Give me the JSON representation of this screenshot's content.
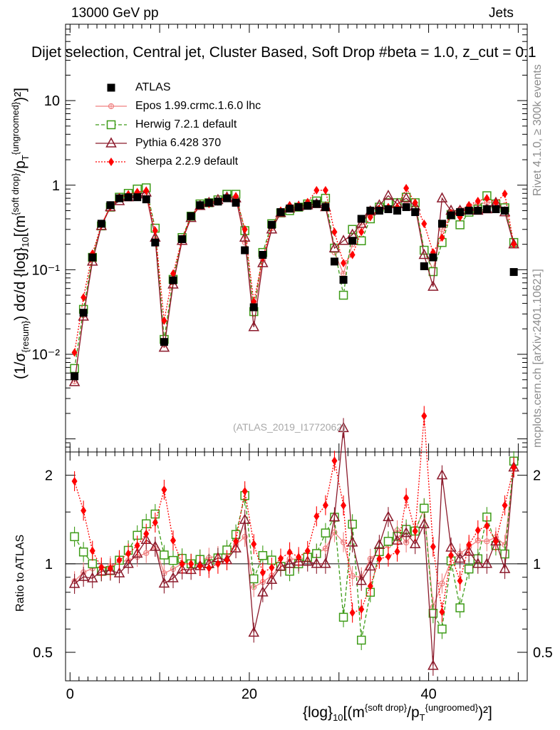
{
  "header": {
    "energy": "13000 GeV pp",
    "category": "Jets",
    "title_text": "Dijet selection, Central jet, Cluster Based, Soft Drop #beta = 1.0, z_cut = 0.1"
  },
  "side_texts": {
    "rivet": "Rivet 4.1.0, ≥ 300k events",
    "source": "mcplots.cern.ch [arXiv:2401.10621]"
  },
  "watermark": "(ATLAS_2019_I1772062)",
  "axis_labels": {
    "y_main_prefix": "(1/σ",
    "y_main_sub": "{resum}",
    "y_main_rest": ") dσ/d {log}",
    "y_main_sub2": "10",
    "y_main_tail": "[(m",
    "y_main_sup": "{soft drop}",
    "y_main_tail2": "/p",
    "y_main_sub3": "T",
    "y_main_sup2": "{ungroomed}",
    "y_main_end": ")²]",
    "y_ratio": "Ratio to ATLAS",
    "x_prefix": "{log}",
    "x_sub": "10",
    "x_mid": "[(m",
    "x_sup": "{soft drop}",
    "x_mid2": "/p",
    "x_sub2": "T",
    "x_sup2": "{ungroomed}",
    "x_end": ")²]"
  },
  "main_ticks": [
    "10⁻²",
    "10⁻¹",
    "1",
    "10"
  ],
  "ratio_ticks": [
    "0.5",
    "1",
    "2"
  ],
  "x_ticks": [
    "0",
    "20",
    "40"
  ],
  "legend": [
    {
      "label": "ATLAS",
      "color": "#000000",
      "marker": "square-filled",
      "line": "none"
    },
    {
      "label": "Epos 1.99.crmc.1.6.0 lhc",
      "color": "#f08080",
      "marker": "plus-circle",
      "line": "solid"
    },
    {
      "label": "Herwig 7.2.1 default",
      "color": "#3d9b17",
      "marker": "square-open",
      "line": "dashed"
    },
    {
      "label": "Pythia 6.428 370",
      "color": "#8b1a2b",
      "marker": "triangle-open",
      "line": "solid"
    },
    {
      "label": "Sherpa 2.2.9 default",
      "color": "#ff0000",
      "marker": "diamond-filled",
      "line": "dotted"
    }
  ],
  "chart_data": {
    "type": "scatter",
    "title": "Dijet selection, Central jet, Cluster Based, Soft Drop #beta = 1.0, z_cut = 0.1",
    "xlabel": "{log}_10[(m^{soft drop}/p_T^{ungroomed})^2]",
    "ylabel": "(1/σ_{resum}) dσ/d {log}_10[(m^{soft drop}/p_T^{ungroomed})^2]",
    "xlim": [
      -0.5,
      51
    ],
    "ylim_main": [
      0.0007,
      80
    ],
    "ylim_ratio": [
      0.4,
      2.4
    ],
    "yscale_main": "log",
    "yscale_ratio": "log",
    "legend_position": "top-left",
    "x": [
      0.5,
      1.5,
      2.5,
      3.5,
      4.5,
      5.5,
      6.5,
      7.5,
      8.5,
      9.5,
      10.5,
      11.5,
      12.5,
      13.5,
      14.5,
      15.5,
      16.5,
      17.5,
      18.5,
      19.5,
      20.5,
      21.5,
      22.5,
      23.5,
      24.5,
      25.5,
      26.5,
      27.5,
      28.5,
      29.5,
      30.5,
      31.5,
      32.5,
      33.5,
      34.5,
      35.5,
      36.5,
      37.5,
      38.5,
      39.5,
      40.5,
      41.5,
      42.5,
      43.5,
      44.5,
      45.5,
      46.5,
      47.5,
      48.5,
      49.5
    ],
    "series": [
      {
        "name": "ATLAS",
        "values": [
          0.0055,
          0.031,
          0.14,
          0.35,
          0.58,
          0.7,
          0.72,
          0.72,
          0.68,
          0.21,
          0.014,
          0.075,
          0.23,
          0.43,
          0.58,
          0.62,
          0.64,
          0.7,
          0.62,
          0.17,
          0.036,
          0.15,
          0.34,
          0.48,
          0.53,
          0.55,
          0.57,
          0.6,
          0.55,
          0.125,
          0.076,
          0.22,
          0.4,
          0.5,
          0.5,
          0.52,
          0.5,
          0.55,
          0.48,
          0.11,
          0.14,
          0.35,
          0.44,
          0.48,
          0.5,
          0.5,
          0.52,
          0.52,
          0.5,
          0.094
        ]
      },
      {
        "name": "Epos 1.99.crmc.1.6.0 lhc",
        "values": [
          0.0048,
          0.029,
          0.135,
          0.34,
          0.57,
          0.71,
          0.74,
          0.76,
          0.74,
          0.24,
          0.013,
          0.072,
          0.23,
          0.43,
          0.6,
          0.65,
          0.68,
          0.76,
          0.72,
          0.21,
          0.03,
          0.13,
          0.31,
          0.47,
          0.55,
          0.57,
          0.6,
          0.65,
          0.62,
          0.16,
          0.09,
          0.2,
          0.36,
          0.52,
          0.55,
          0.6,
          0.65,
          0.65,
          0.62,
          0.17,
          0.1,
          0.3,
          0.45,
          0.52,
          0.57,
          0.6,
          0.62,
          0.64,
          0.58,
          0.2
        ]
      },
      {
        "name": "Herwig 7.2.1 default",
        "values": [
          0.0068,
          0.034,
          0.14,
          0.33,
          0.55,
          0.72,
          0.8,
          0.9,
          0.93,
          0.31,
          0.015,
          0.077,
          0.24,
          0.43,
          0.6,
          0.62,
          0.67,
          0.78,
          0.78,
          0.29,
          0.032,
          0.16,
          0.35,
          0.47,
          0.5,
          0.55,
          0.6,
          0.65,
          0.7,
          0.18,
          0.05,
          0.3,
          0.22,
          0.4,
          0.55,
          0.62,
          0.62,
          0.72,
          0.62,
          0.17,
          0.095,
          0.21,
          0.45,
          0.34,
          0.48,
          0.52,
          0.75,
          0.6,
          0.54,
          0.21
        ]
      },
      {
        "name": "Pythia 6.428 370",
        "values": [
          0.0047,
          0.028,
          0.125,
          0.33,
          0.55,
          0.65,
          0.72,
          0.78,
          0.82,
          0.24,
          0.012,
          0.067,
          0.22,
          0.41,
          0.57,
          0.62,
          0.67,
          0.72,
          0.7,
          0.24,
          0.021,
          0.12,
          0.3,
          0.47,
          0.53,
          0.56,
          0.58,
          0.6,
          0.55,
          0.18,
          0.22,
          0.26,
          0.35,
          0.49,
          0.58,
          0.75,
          0.6,
          0.7,
          0.56,
          0.15,
          0.063,
          0.7,
          0.5,
          0.5,
          0.55,
          0.5,
          0.52,
          0.62,
          0.48,
          0.2
        ]
      },
      {
        "name": "Sherpa 2.2.9 default",
        "values": [
          0.0105,
          0.047,
          0.155,
          0.34,
          0.56,
          0.72,
          0.78,
          0.83,
          0.86,
          0.29,
          0.025,
          0.09,
          0.23,
          0.43,
          0.57,
          0.6,
          0.64,
          0.72,
          0.74,
          0.3,
          0.042,
          0.14,
          0.33,
          0.5,
          0.58,
          0.58,
          0.63,
          0.87,
          0.87,
          0.28,
          0.12,
          0.15,
          0.28,
          0.42,
          0.52,
          0.55,
          0.55,
          0.92,
          0.62,
          0.35,
          0.16,
          0.24,
          0.47,
          0.42,
          0.58,
          0.65,
          0.7,
          0.62,
          0.79,
          0.2
        ]
      }
    ]
  }
}
